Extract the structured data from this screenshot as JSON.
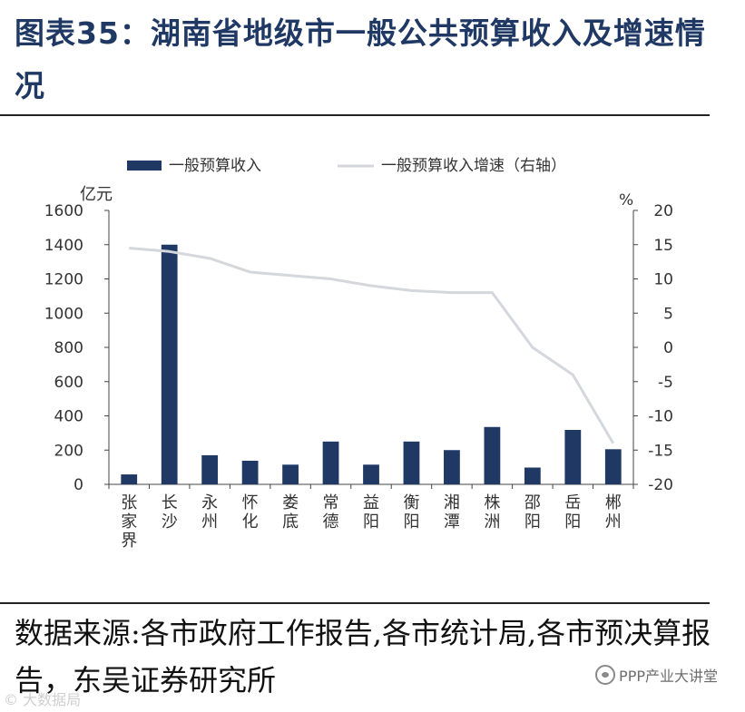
{
  "title": "图表35：湖南省地级市一般公共预算收入及增速情况",
  "source": "数据来源:各市政府工作报告,各市统计局,各市预决算报告，东吴证券研究所",
  "watermark": "PPP产业大讲堂",
  "watermark_left": "© 大数据局",
  "colors": {
    "bar": "#1f3864",
    "line": "#d4d7dc",
    "title": "#1f3864"
  },
  "chart_data": {
    "type": "bar",
    "categories": [
      "张家界",
      "长沙",
      "永州",
      "怀化",
      "娄底",
      "常德",
      "益阳",
      "衡阳",
      "湘潭",
      "株洲",
      "邵阳",
      "岳阳",
      "郴州"
    ],
    "series": [
      {
        "name": "一般预算收入",
        "type": "bar",
        "axis": "left",
        "values": [
          58,
          1400,
          170,
          138,
          115,
          250,
          115,
          250,
          200,
          335,
          98,
          318,
          205
        ]
      },
      {
        "name": "一般预算收入增速（右轴）",
        "type": "line",
        "axis": "right",
        "values": [
          14.5,
          14,
          13,
          11,
          10.5,
          10,
          9,
          8.3,
          8,
          8,
          0,
          -4,
          -14
        ]
      }
    ],
    "ylabel": "亿元",
    "y2label": "%",
    "ylim": [
      0,
      1600
    ],
    "y2lim": [
      -20,
      20
    ],
    "yticks": [
      "0",
      "200",
      "400",
      "600",
      "800",
      "1000",
      "1200",
      "1400",
      "1600"
    ],
    "y2ticks": [
      "-20",
      "-15",
      "-10",
      "-5",
      "0",
      "5",
      "10",
      "15",
      "20"
    ],
    "grid": false,
    "legend": "top"
  }
}
